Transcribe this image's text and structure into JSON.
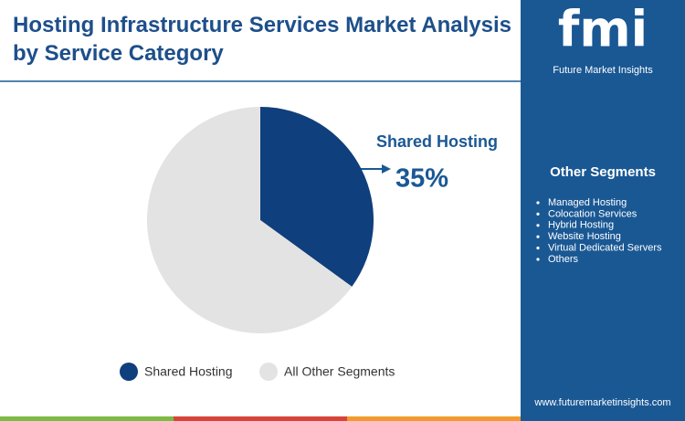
{
  "chart_data": {
    "type": "pie",
    "title": "Hosting Infrastructure Services Market Analysis by Service Category",
    "categories": [
      "Shared Hosting",
      "All Other Segments"
    ],
    "values": [
      35,
      65
    ],
    "value_labels": [
      "35%",
      null
    ],
    "colors": [
      "#0f3f7c",
      "#e3e3e3"
    ],
    "legend": "bottom"
  },
  "sidebar": {
    "title": "Other Segments",
    "items": [
      "Managed Hosting",
      "Colocation Services",
      "Hybrid Hosting",
      "Website Hosting",
      "Virtual Dedicated Servers",
      "Others"
    ]
  },
  "brand": {
    "logo": "fmi",
    "name": "Future Market Insights",
    "url": "www.futuremarketinsights.com"
  }
}
